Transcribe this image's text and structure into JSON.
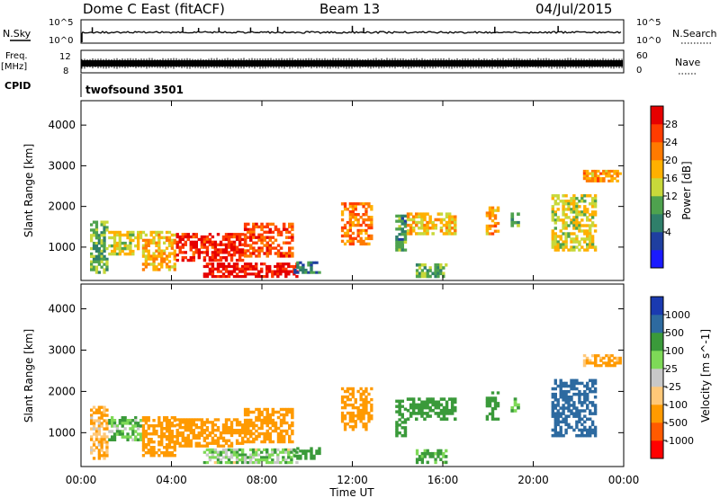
{
  "header": {
    "station": "Dome C East (fitACF)",
    "beam": "Beam 13",
    "date": "04/Jul/2015"
  },
  "strips": {
    "nsky_label": "N.Sky",
    "nsearch_label": "N.Search",
    "freq_label_1": "Freq.",
    "freq_label_2": "[MHz]",
    "nave_label": "Nave",
    "cpid_label": "CPID",
    "cpid_text": "twofsound 3501",
    "noise_ticks": [
      "10^5",
      "10^0"
    ],
    "freq_ticks": [
      "12",
      "8"
    ],
    "nave_ticks": [
      "60",
      "0"
    ]
  },
  "colors": {
    "power_scale": [
      "#1a1aff",
      "#1f3fa0",
      "#2f7f6a",
      "#4ea24e",
      "#c8d83a",
      "#ffb000",
      "#ff7a00",
      "#ff3c00",
      "#e60000"
    ],
    "velocity_scale": [
      "#ff0000",
      "#ff5a00",
      "#ff9a00",
      "#ffc878",
      "#c8c8c8",
      "#7ed957",
      "#3a9a3a",
      "#2d6aa0",
      "#1a3ab0"
    ]
  },
  "chart_data": [
    {
      "type": "heatmap",
      "title": "Power",
      "xlabel": "",
      "ylabel": "Slant Range [km]",
      "xlim": [
        0,
        24
      ],
      "ylim": [
        180,
        4600
      ],
      "yticks": [
        1000,
        2000,
        3000,
        4000
      ],
      "colorbar_label": "Power [dB]",
      "colorbar_ticks": [
        "28",
        "24",
        "20",
        "16",
        "12",
        "8",
        "4"
      ],
      "colorbar_range": [
        0,
        30
      ],
      "echo_regions": [
        {
          "t0": 0.4,
          "t1": 1.2,
          "r0": 350,
          "r1": 1650,
          "v": 12
        },
        {
          "t0": 1.2,
          "t1": 2.7,
          "r0": 800,
          "r1": 1400,
          "v": 16
        },
        {
          "t0": 2.7,
          "t1": 4.2,
          "r0": 420,
          "r1": 1400,
          "v": 18
        },
        {
          "t0": 4.2,
          "t1": 7.2,
          "r0": 650,
          "r1": 1350,
          "v": 27
        },
        {
          "t0": 7.2,
          "t1": 9.4,
          "r0": 750,
          "r1": 1600,
          "v": 24
        },
        {
          "t0": 5.4,
          "t1": 9.6,
          "r0": 250,
          "r1": 620,
          "v": 28
        },
        {
          "t0": 9.4,
          "t1": 10.6,
          "r0": 350,
          "r1": 650,
          "v": 8
        },
        {
          "t0": 11.5,
          "t1": 12.9,
          "r0": 1050,
          "r1": 2100,
          "v": 22
        },
        {
          "t0": 13.9,
          "t1": 14.4,
          "r0": 900,
          "r1": 1800,
          "v": 10
        },
        {
          "t0": 14.4,
          "t1": 16.6,
          "r0": 1300,
          "r1": 1850,
          "v": 18
        },
        {
          "t0": 14.8,
          "t1": 16.2,
          "r0": 250,
          "r1": 600,
          "v": 12
        },
        {
          "t0": 17.9,
          "t1": 18.5,
          "r0": 1300,
          "r1": 2000,
          "v": 20
        },
        {
          "t0": 19.0,
          "t1": 19.4,
          "r0": 1500,
          "r1": 1850,
          "v": 12
        },
        {
          "t0": 20.8,
          "t1": 22.8,
          "r0": 900,
          "r1": 2300,
          "v": 16
        },
        {
          "t0": 22.2,
          "t1": 23.9,
          "r0": 2600,
          "r1": 2900,
          "v": 20
        }
      ]
    },
    {
      "type": "heatmap",
      "title": "Velocity",
      "xlabel": "Time UT",
      "ylabel": "Slant Range [km]",
      "xlim": [
        0,
        24
      ],
      "ylim": [
        180,
        4600
      ],
      "xticks": [
        "00:00",
        "04:00",
        "08:00",
        "12:00",
        "16:00",
        "20:00",
        "00:00"
      ],
      "yticks": [
        1000,
        2000,
        3000,
        4000
      ],
      "colorbar_label": "Velocity [m s^-1]",
      "colorbar_ticks": [
        "1000",
        "500",
        "100",
        "25",
        "-25",
        "-100",
        "-500",
        "-1000"
      ],
      "echo_regions": [
        {
          "t0": 0.4,
          "t1": 1.2,
          "r0": 350,
          "r1": 1650,
          "v": -100
        },
        {
          "t0": 1.2,
          "t1": 2.7,
          "r0": 800,
          "r1": 1400,
          "v": 100
        },
        {
          "t0": 2.7,
          "t1": 4.2,
          "r0": 420,
          "r1": 1400,
          "v": -300
        },
        {
          "t0": 4.2,
          "t1": 7.2,
          "r0": 650,
          "r1": 1350,
          "v": -400
        },
        {
          "t0": 7.2,
          "t1": 9.4,
          "r0": 750,
          "r1": 1600,
          "v": -300
        },
        {
          "t0": 5.4,
          "t1": 9.6,
          "r0": 250,
          "r1": 620,
          "v": 50
        },
        {
          "t0": 9.4,
          "t1": 10.6,
          "r0": 350,
          "r1": 650,
          "v": 300
        },
        {
          "t0": 11.5,
          "t1": 12.9,
          "r0": 1050,
          "r1": 2100,
          "v": -400
        },
        {
          "t0": 13.9,
          "t1": 14.4,
          "r0": 900,
          "r1": 1800,
          "v": 200
        },
        {
          "t0": 14.4,
          "t1": 16.6,
          "r0": 1300,
          "r1": 1850,
          "v": 300
        },
        {
          "t0": 14.8,
          "t1": 16.2,
          "r0": 250,
          "r1": 600,
          "v": 150
        },
        {
          "t0": 17.9,
          "t1": 18.5,
          "r0": 1300,
          "r1": 2000,
          "v": 200
        },
        {
          "t0": 19.0,
          "t1": 19.4,
          "r0": 1500,
          "r1": 1850,
          "v": 100
        },
        {
          "t0": 20.8,
          "t1": 22.8,
          "r0": 900,
          "r1": 2300,
          "v": 600
        },
        {
          "t0": 22.2,
          "t1": 23.9,
          "r0": 2600,
          "r1": 2900,
          "v": -150
        }
      ]
    }
  ]
}
